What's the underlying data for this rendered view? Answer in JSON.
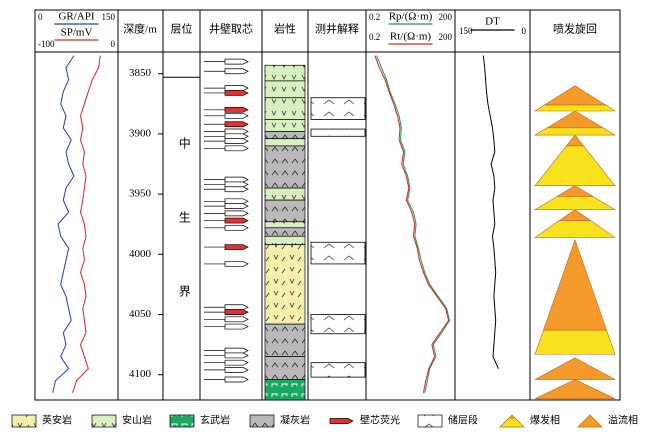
{
  "chart_data": {
    "type": "well-log",
    "depth_label": "深度/m",
    "columns": [
      "层位",
      "井壁取芯",
      "岩性",
      "测井解释",
      "喷发旋回"
    ],
    "ylim": [
      3832,
      4121
    ],
    "yticks": [
      3850,
      3900,
      3950,
      4000,
      4050,
      4100
    ],
    "depth": [
      3835,
      3845,
      3855,
      3865,
      3875,
      3885,
      3895,
      3905,
      3915,
      3925,
      3935,
      3945,
      3955,
      3965,
      3975,
      3985,
      3995,
      4005,
      4015,
      4025,
      4035,
      4045,
      4055,
      4065,
      4075,
      4085,
      4095,
      4105,
      4115
    ],
    "curves": [
      {
        "name": "GR/API",
        "color": "#1c3cc8",
        "lim": [
          0,
          150
        ],
        "log": false,
        "values": [
          70,
          55,
          60,
          50,
          45,
          55,
          50,
          65,
          55,
          60,
          70,
          55,
          50,
          60,
          40,
          45,
          60,
          55,
          50,
          45,
          55,
          60,
          65,
          50,
          55,
          45,
          60,
          35,
          30
        ]
      },
      {
        "name": "SP/mV",
        "color": "#e02020",
        "lim": [
          -100,
          0
        ],
        "log": false,
        "values": [
          -20,
          -22,
          -30,
          -35,
          -40,
          -45,
          -42,
          -45,
          -40,
          -42,
          -38,
          -40,
          -42,
          -45,
          -40,
          -38,
          -42,
          -40,
          -45,
          -40,
          -38,
          -42,
          -40,
          -38,
          -45,
          -40,
          -35,
          -50,
          -55
        ]
      },
      {
        "name": "Rp/(Ω·m)",
        "color": "#1f9a4a",
        "lim": [
          0.2,
          200
        ],
        "log": true,
        "values": [
          0.4,
          0.6,
          0.9,
          1.2,
          1.8,
          2.5,
          3,
          2.8,
          4,
          3.5,
          5,
          6,
          5,
          8,
          10,
          9,
          12,
          15,
          20,
          30,
          60,
          120,
          150,
          80,
          40,
          50,
          30,
          25,
          20
        ]
      },
      {
        "name": "Rt/(Ω·m)",
        "color": "#e02020",
        "lim": [
          0.2,
          200
        ],
        "log": true,
        "values": [
          0.35,
          0.5,
          0.8,
          1.1,
          1.6,
          2.2,
          2.7,
          2.5,
          3.6,
          3.1,
          4.5,
          5.5,
          4.5,
          7,
          9,
          8,
          11,
          13,
          18,
          27,
          55,
          110,
          140,
          70,
          36,
          45,
          28,
          22,
          18
        ]
      },
      {
        "name": "DT",
        "color": "#000000",
        "lim": [
          150,
          0
        ],
        "log": false,
        "values": [
          95,
          92,
          90,
          88,
          85,
          80,
          75,
          72,
          70,
          78,
          72,
          70,
          74,
          72,
          70,
          75,
          72,
          70,
          68,
          70,
          72,
          70,
          68,
          70,
          72,
          74,
          62,
          null,
          null
        ]
      }
    ],
    "strata": {
      "name": "中生界",
      "top": 3853
    },
    "legend": [
      "英安岩",
      "安山岩",
      "玄武岩",
      "凝灰岩",
      "壁芯荧光",
      "储层段",
      "爆发相",
      "溢流相"
    ],
    "lith": [
      {
        "top": 3843,
        "bottom": 3856,
        "rock": "安山岩"
      },
      {
        "top": 3856,
        "bottom": 3870,
        "rock": "安山岩"
      },
      {
        "top": 3870,
        "bottom": 3888,
        "rock": "安山岩"
      },
      {
        "top": 3888,
        "bottom": 3898,
        "rock": "安山岩"
      },
      {
        "top": 3898,
        "bottom": 3904,
        "rock": "凝灰岩"
      },
      {
        "top": 3904,
        "bottom": 3910,
        "rock": "安山岩"
      },
      {
        "top": 3910,
        "bottom": 3945,
        "rock": "凝灰岩"
      },
      {
        "top": 3945,
        "bottom": 3955,
        "rock": "安山岩"
      },
      {
        "top": 3955,
        "bottom": 3973,
        "rock": "凝灰岩"
      },
      {
        "top": 3973,
        "bottom": 3978,
        "rock": "安山岩"
      },
      {
        "top": 3978,
        "bottom": 3985,
        "rock": "凝灰岩"
      },
      {
        "top": 3985,
        "bottom": 3992,
        "rock": "安山岩"
      },
      {
        "top": 3992,
        "bottom": 4058,
        "rock": "英安岩"
      },
      {
        "top": 4058,
        "bottom": 4085,
        "rock": "凝灰岩"
      },
      {
        "top": 4085,
        "bottom": 4104,
        "rock": "凝灰岩"
      },
      {
        "top": 4104,
        "bottom": 4121,
        "rock": "玄武岩"
      }
    ],
    "cores": [
      {
        "depth": 3840,
        "fluor": false
      },
      {
        "depth": 3848,
        "fluor": false
      },
      {
        "depth": 3862,
        "fluor": false
      },
      {
        "depth": 3866,
        "fluor": true
      },
      {
        "depth": 3880,
        "fluor": true
      },
      {
        "depth": 3885,
        "fluor": false
      },
      {
        "depth": 3892,
        "fluor": true
      },
      {
        "depth": 3898,
        "fluor": false
      },
      {
        "depth": 3902,
        "fluor": false
      },
      {
        "depth": 3906,
        "fluor": false
      },
      {
        "depth": 3912,
        "fluor": false
      },
      {
        "depth": 3938,
        "fluor": false
      },
      {
        "depth": 3942,
        "fluor": false
      },
      {
        "depth": 3946,
        "fluor": false
      },
      {
        "depth": 3956,
        "fluor": false
      },
      {
        "depth": 3960,
        "fluor": false
      },
      {
        "depth": 3966,
        "fluor": false
      },
      {
        "depth": 3972,
        "fluor": true
      },
      {
        "depth": 3978,
        "fluor": false
      },
      {
        "depth": 3994,
        "fluor": true
      },
      {
        "depth": 4008,
        "fluor": false
      },
      {
        "depth": 4044,
        "fluor": false
      },
      {
        "depth": 4048,
        "fluor": true
      },
      {
        "depth": 4054,
        "fluor": false
      },
      {
        "depth": 4060,
        "fluor": false
      },
      {
        "depth": 4080,
        "fluor": false
      },
      {
        "depth": 4084,
        "fluor": false
      },
      {
        "depth": 4090,
        "fluor": false
      },
      {
        "depth": 4096,
        "fluor": false
      },
      {
        "depth": 4104,
        "fluor": false
      }
    ],
    "reservoirs": [
      {
        "top": 3870,
        "bottom": 3888
      },
      {
        "top": 3896,
        "bottom": 3902
      },
      {
        "top": 3990,
        "bottom": 4008
      },
      {
        "top": 4050,
        "bottom": 4066
      },
      {
        "top": 4090,
        "bottom": 4102
      }
    ],
    "explosive_color": "#f8e21c",
    "effusive_color": "#f39a2b",
    "cycles": [
      {
        "top": 3860,
        "split": 3876,
        "bottom": 3881
      },
      {
        "top": 3881,
        "split": 3895,
        "bottom": 3901
      },
      {
        "top": 3901,
        "split": 3910,
        "bottom": 3943
      },
      {
        "top": 3943,
        "split": 3952,
        "bottom": 3963
      },
      {
        "top": 3963,
        "split": 3972,
        "bottom": 3986
      },
      {
        "top": 3988,
        "split": 4063,
        "bottom": 4083
      },
      {
        "top": 4086,
        "split": 4104,
        "bottom": 4104
      },
      {
        "top": 4104,
        "split": 4120,
        "bottom": 4120
      }
    ]
  }
}
